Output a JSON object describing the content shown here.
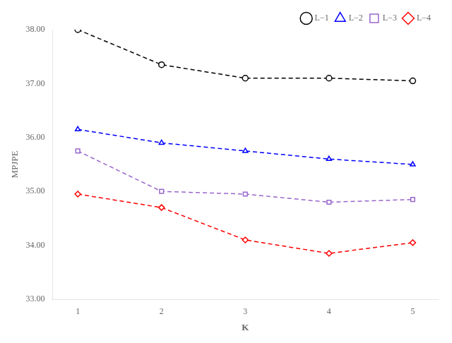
{
  "chart_data": {
    "type": "line",
    "xlabel": "K",
    "ylabel": "MPJPE",
    "x": [
      1,
      2,
      3,
      4,
      5
    ],
    "xlim": [
      0.7,
      5.3
    ],
    "xticks": [
      1,
      2,
      3,
      4,
      5
    ],
    "ylim": [
      33.0,
      38.0
    ],
    "yticks": [
      {
        "value": 33.0,
        "label": "33.00"
      },
      {
        "value": 34.0,
        "label": "34.00"
      },
      {
        "value": 35.0,
        "label": "35.00"
      },
      {
        "value": 36.0,
        "label": "36.00"
      },
      {
        "value": 37.0,
        "label": "37.00"
      },
      {
        "value": 38.0,
        "label": "38.00"
      }
    ],
    "grid": false,
    "legend": "upper right",
    "line_style": "dashed",
    "series": [
      {
        "name": "L−1",
        "color": "black",
        "marker": "circle",
        "values": [
          38.0,
          37.35,
          37.1,
          37.1,
          37.05
        ]
      },
      {
        "name": "L−2",
        "color": "blue",
        "marker": "triangle",
        "values": [
          36.15,
          35.9,
          35.75,
          35.6,
          35.5
        ]
      },
      {
        "name": "L−3",
        "color": "#9966cc",
        "marker": "square",
        "values": [
          35.75,
          35.0,
          34.95,
          34.8,
          34.85
        ]
      },
      {
        "name": "L−4",
        "color": "red",
        "marker": "diamond",
        "values": [
          34.95,
          34.7,
          34.1,
          33.85,
          34.05
        ]
      }
    ]
  }
}
